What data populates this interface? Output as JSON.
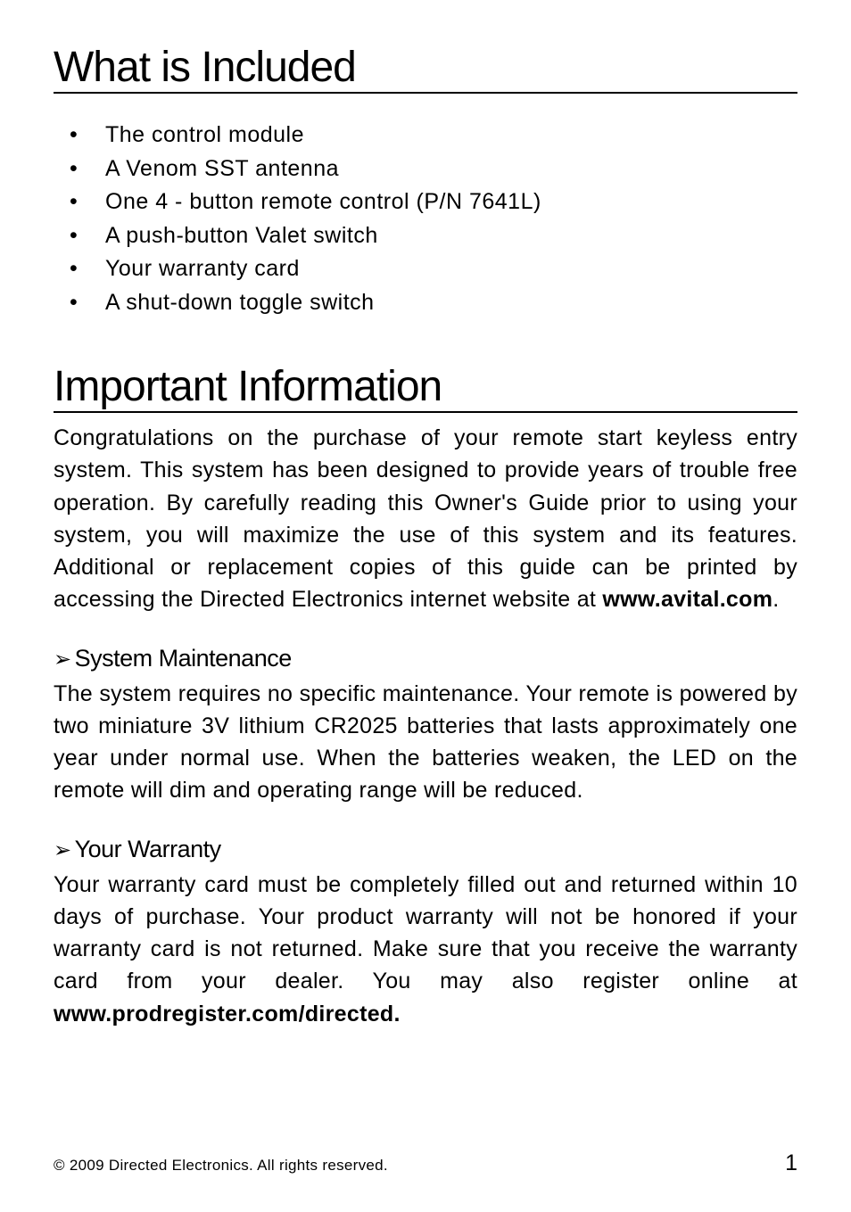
{
  "headings": {
    "whatIncluded": "What is Included",
    "importantInfo": "Important Information"
  },
  "includedItems": [
    "The control module",
    "A Venom SST antenna",
    "One 4 - button remote control (P/N 7641L)",
    "A push-button Valet switch",
    "Your warranty card",
    "A shut-down toggle switch"
  ],
  "importantInfoBody": {
    "prefix": "Congratulations on the purchase of your remote start keyless entry system. This system has been designed to provide years of trouble free operation. By carefully reading this Owner's Guide prior to using your system, you will maximize the use of this system and its features. Additional or replacement copies of this guide can be printed by accessing the Directed Electronics internet website at ",
    "boldUrl": "www.avital.com",
    "suffix": "."
  },
  "sections": {
    "maintenance": {
      "title": "System Maintenance",
      "body": "The system requires no specific maintenance. Your remote is powered by two miniature 3V lithium CR2025 batteries that lasts approximately one year under normal use. When the batteries weaken, the LED on the remote will dim and operating range will be reduced."
    },
    "warranty": {
      "title": "Your Warranty",
      "bodyPrefix": "Your warranty card must be completely filled out and returned within 10 days of purchase. Your product warranty will not be honored if your warranty card is not returned. Make sure that you receive the warranty card from your dealer. You may also register online at ",
      "boldUrl": "www.prodregister.com/directed."
    }
  },
  "footer": {
    "copyright": "© 2009 Directed Electronics. All rights reserved.",
    "pageNumber": "1"
  },
  "styling": {
    "bodyFontSize": 25,
    "headingFontSize": 48,
    "subheadingFontSize": 27,
    "footerFontSize": 17,
    "textColor": "#000000",
    "backgroundColor": "#ffffff",
    "arrowGlyph": "➢"
  }
}
